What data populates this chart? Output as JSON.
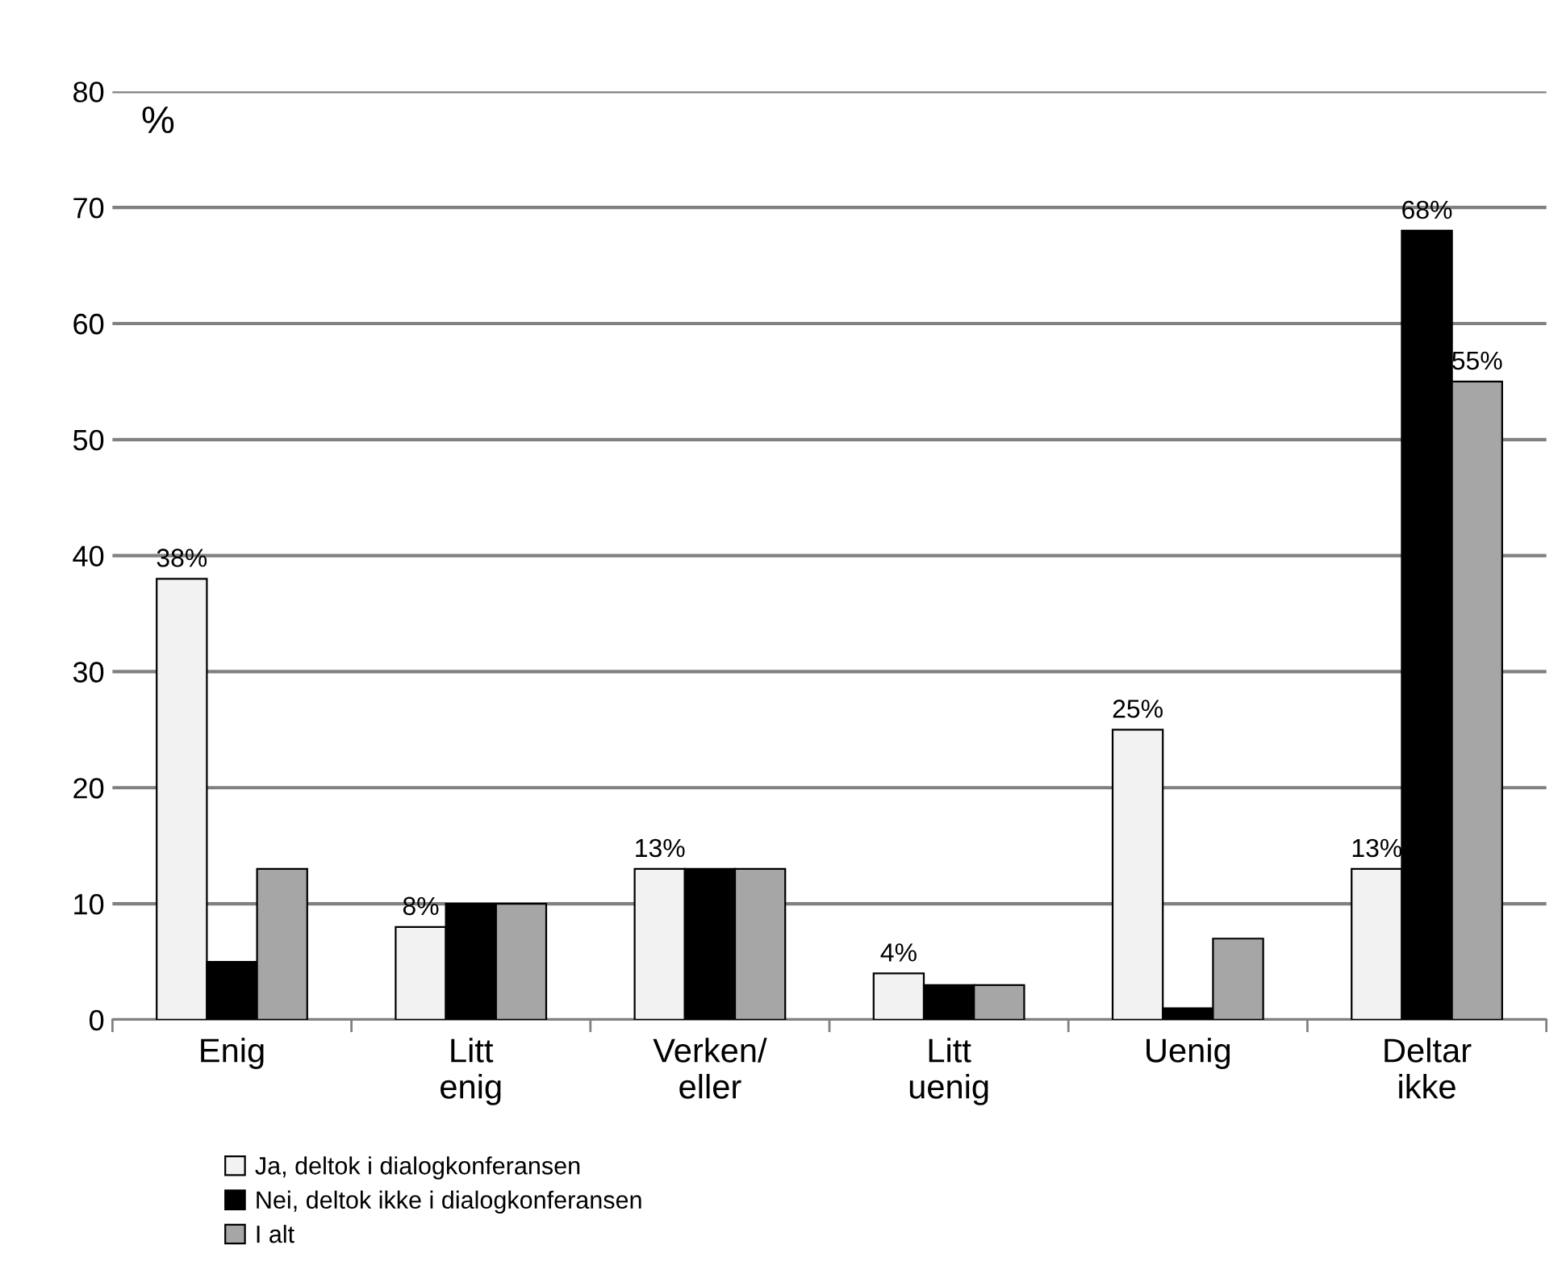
{
  "chart_data": {
    "type": "bar",
    "ylabel": "%",
    "categories": [
      "Enig",
      "Litt\nenig",
      "Verken/\neller",
      "Litt\nuenig",
      "Uenig",
      "Deltar\nikke"
    ],
    "series": [
      {
        "name": "Ja, deltok i dialogkonferansen",
        "color": "#f2f2f2",
        "values": [
          38,
          8,
          13,
          4,
          25,
          13
        ],
        "value_labels": [
          "38%",
          "8%",
          "13%",
          "4%",
          "25%",
          "13%"
        ]
      },
      {
        "name": "Nei, deltok ikke i dialogkonferansen",
        "color": "#000000",
        "values": [
          5,
          10,
          13,
          3,
          1,
          68
        ],
        "value_labels": [
          null,
          null,
          null,
          null,
          null,
          "68%"
        ]
      },
      {
        "name": "I alt",
        "color": "#a6a6a6",
        "values": [
          13,
          10,
          13,
          3,
          7,
          55
        ],
        "value_labels": [
          null,
          null,
          null,
          null,
          null,
          "55%"
        ]
      }
    ],
    "ylim": [
      0,
      80
    ],
    "yticks": [
      0,
      10,
      20,
      30,
      40,
      50,
      60,
      70,
      80
    ],
    "grid": "y",
    "legend": "bottom left"
  }
}
